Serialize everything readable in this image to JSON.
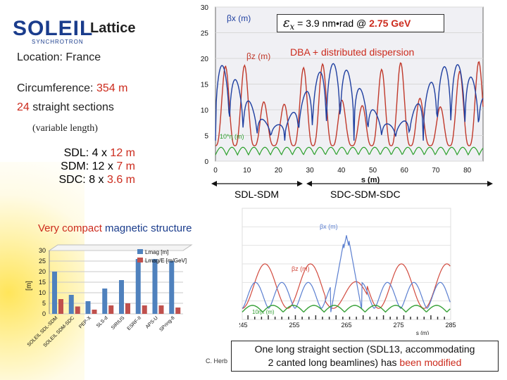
{
  "logo": {
    "name": "SOLEIL",
    "sub": "SYNCHROTRON"
  },
  "title": "Lattice",
  "location": "Location: France",
  "circumference": {
    "label": "Circumference:",
    "value": "354 m"
  },
  "straight": {
    "count": "24",
    "label": "straight sections"
  },
  "variable": "(variable length)",
  "sections": [
    {
      "label": "SDL:",
      "count": "4 x",
      "length": "12 m"
    },
    {
      "label": "SDM:",
      "count": "12 x",
      "length": "7 m"
    },
    {
      "label": "SDC:",
      "count": "8 x",
      "length": "3.6 m"
    }
  ],
  "emittance": {
    "symbol": "ε",
    "sub": "x",
    "text": "= 3.9 nm•rad @",
    "energy": "2.75 GeV"
  },
  "lattice_type": "DBA + distributed dispersion",
  "labels": {
    "sdl_sdm": "SDL-SDM",
    "sdc": "SDC-SDM-SDC"
  },
  "compact": {
    "prefix": "Very compact",
    "suffix": "magnetic structure"
  },
  "credit": "C. Herb",
  "note": {
    "line1": "One long straight section (SDL13, accommodating",
    "line2a": "2 canted long beamlines) has",
    "line2b": "been modified"
  },
  "chart_data": [
    {
      "type": "line",
      "xlabel": "s (m)",
      "ylim": [
        0,
        30
      ],
      "xlim": [
        0,
        85
      ],
      "yticks": [
        0,
        5,
        10,
        15,
        20,
        25,
        30
      ],
      "xticks": [
        0,
        10,
        20,
        30,
        40,
        50,
        60,
        70,
        80
      ],
      "series": [
        {
          "name": "βx (m)",
          "color": "#1f3fa0"
        },
        {
          "name": "βz (m)",
          "color": "#c0392b"
        },
        {
          "name": "10*η (m)",
          "color": "#2ca02c"
        }
      ]
    },
    {
      "type": "bar",
      "ylabel": "[m]",
      "ylim": [
        0,
        30
      ],
      "yticks": [
        0,
        5,
        10,
        15,
        20,
        25,
        30
      ],
      "categories": [
        "SOLEIL SDL-SDM",
        "SOLEIL SDM-SDC",
        "PEP-X",
        "SLS-d",
        "SIRIUS",
        "ESRF-II",
        "APS-U",
        "SPring-8"
      ],
      "series": [
        {
          "name": "Lmag [m]",
          "color": "#4f81bd",
          "values": [
            20,
            9,
            6,
            12,
            16,
            26,
            26,
            25
          ]
        },
        {
          "name": "Lmag/E [m/GeV]",
          "color": "#c0504d",
          "values": [
            7,
            3.5,
            2,
            4,
            5,
            4,
            4,
            3
          ]
        }
      ]
    },
    {
      "type": "line",
      "xlabel": "s (m)",
      "xticks": [
        245,
        255,
        265,
        275,
        285
      ],
      "series": [
        {
          "name": "βx (m)",
          "color": "#5b7fd0"
        },
        {
          "name": "βz (m)",
          "color": "#d24b3f"
        },
        {
          "name": "10ηx (m)",
          "color": "#35a035"
        }
      ]
    }
  ]
}
